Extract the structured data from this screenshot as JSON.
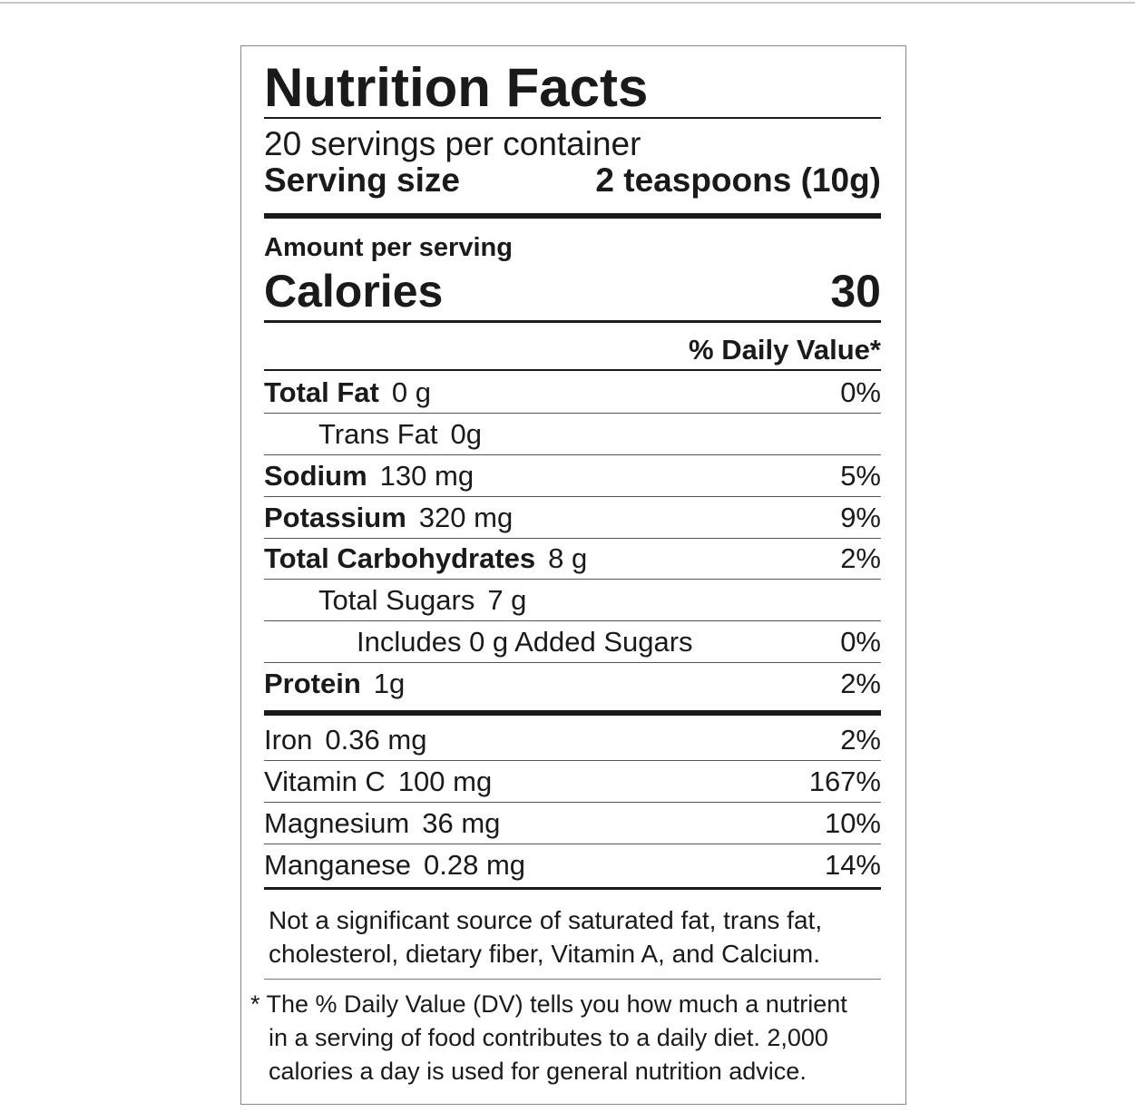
{
  "label": {
    "title": "Nutrition Facts",
    "servings": "20 servings per container",
    "serving_size_label": "Serving size",
    "serving_size_value": "2 teaspoons (10g)",
    "amount_per_serving": "Amount per serving",
    "calories_label": "Calories",
    "calories_value": "30",
    "dv_header": "% Daily Value*",
    "rows": [
      {
        "name": "Total Fat",
        "amount": "0 g",
        "dv": "0%"
      },
      {
        "name": "Trans Fat",
        "amount": "0g"
      },
      {
        "name": "Sodium",
        "amount": "130 mg",
        "dv": "5%"
      },
      {
        "name": "Potassium",
        "amount": "320 mg",
        "dv": "9%"
      },
      {
        "name": "Total Carbohydrates",
        "amount": "8 g",
        "dv": "2%"
      },
      {
        "name": "Total Sugars",
        "amount": "7 g"
      },
      {
        "name": "Includes 0 g Added Sugars",
        "dv": "0%"
      },
      {
        "name": "Protein",
        "amount": "1g",
        "dv": "2%"
      },
      {
        "name": "Iron",
        "amount": "0.36 mg",
        "dv": "2%"
      },
      {
        "name": "Vitamin C",
        "amount": "100 mg",
        "dv": "167%"
      },
      {
        "name": "Magnesium",
        "amount": "36 mg",
        "dv": "10%"
      },
      {
        "name": "Manganese",
        "amount": "0.28 mg",
        "dv": "14%"
      }
    ],
    "note_lines": [
      "Not a significant source of saturated fat, trans fat,",
      "cholesterol, dietary fiber, Vitamin A, and Calcium."
    ],
    "footnote_lines": [
      "* The % Daily Value (DV) tells you how much a nutrient",
      "in a serving of food contributes to a daily diet. 2,000",
      "calories a day is used for general nutrition advice."
    ]
  }
}
